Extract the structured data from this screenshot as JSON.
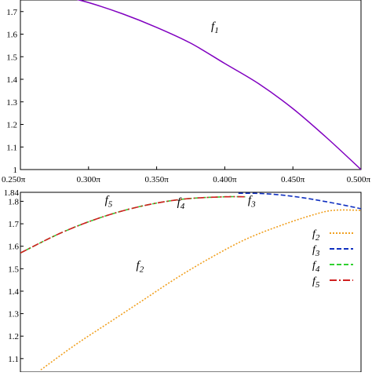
{
  "chart_data": [
    {
      "type": "line",
      "title": "",
      "xlabel": "",
      "ylabel": "",
      "xlim": [
        0.25,
        0.5
      ],
      "ylim": [
        1.0,
        1.8
      ],
      "x_ticks": [
        0.25,
        0.3,
        0.35,
        0.4,
        0.45,
        0.5
      ],
      "x_tick_labels": [
        "0.250π",
        "0.300π",
        "0.350π",
        "0.400π",
        "0.450π",
        "0.500π"
      ],
      "y_ticks": [
        1,
        1.1,
        1.2,
        1.3,
        1.4,
        1.5,
        1.6,
        1.7
      ],
      "y_tick_labels": [
        "1",
        "1.1",
        "1.2",
        "1.3",
        "1.4",
        "1.5",
        "1.6",
        "1.7"
      ],
      "grid": false,
      "series": [
        {
          "name": "f1",
          "color": "#8000c0",
          "dash": "solid",
          "x": [
            0.28,
            0.3,
            0.325,
            0.35,
            0.375,
            0.4,
            0.425,
            0.45,
            0.475,
            0.5
          ],
          "y": [
            1.77,
            1.74,
            1.69,
            1.63,
            1.56,
            1.47,
            1.38,
            1.27,
            1.14,
            1.0
          ]
        }
      ],
      "annotations": [
        {
          "base": "f",
          "sub": "1",
          "x": 0.39,
          "y": 1.62
        }
      ]
    },
    {
      "type": "line",
      "title": "",
      "xlabel": "",
      "ylabel": "",
      "xlim": [
        0.25,
        0.5
      ],
      "ylim": [
        1.04,
        1.84
      ],
      "y_ticks": [
        1.1,
        1.2,
        1.3,
        1.4,
        1.5,
        1.6,
        1.7,
        1.8,
        1.84
      ],
      "y_tick_labels": [
        "1.1",
        "1.2",
        "1.3",
        "1.4",
        "1.5",
        "1.6",
        "1.7",
        "1.8",
        "1.84"
      ],
      "grid": false,
      "legend_position": "right",
      "series": [
        {
          "name": "f2",
          "color": "#f0a020",
          "dash": "fine",
          "x": [
            0.265,
            0.29,
            0.315,
            0.34,
            0.365,
            0.39,
            0.415,
            0.44,
            0.465,
            0.48,
            0.5
          ],
          "y": [
            1.05,
            1.16,
            1.26,
            1.36,
            1.46,
            1.55,
            1.63,
            1.69,
            1.74,
            1.76,
            1.76
          ]
        },
        {
          "name": "f3",
          "color": "#1030c0",
          "dash": "dashed",
          "x": [
            0.41,
            0.425,
            0.44,
            0.455,
            0.47,
            0.485,
            0.5
          ],
          "y": [
            1.836,
            1.835,
            1.829,
            1.818,
            1.803,
            1.786,
            1.767
          ]
        },
        {
          "name": "f4",
          "color": "#30d030",
          "dash": "dashed",
          "x": [
            0.25,
            0.28,
            0.31,
            0.34,
            0.37,
            0.4,
            0.415
          ],
          "y": [
            1.57,
            1.66,
            1.73,
            1.78,
            1.81,
            1.82,
            1.82
          ]
        },
        {
          "name": "f5",
          "color": "#d02020",
          "dash": "dashdot",
          "x": [
            0.25,
            0.28,
            0.31,
            0.34,
            0.37,
            0.4,
            0.415
          ],
          "y": [
            1.57,
            1.66,
            1.73,
            1.78,
            1.81,
            1.82,
            1.82
          ]
        }
      ],
      "annotations": [
        {
          "base": "f",
          "sub": "5",
          "x": 0.312,
          "y": 1.79
        },
        {
          "base": "f",
          "sub": "4",
          "x": 0.365,
          "y": 1.78
        },
        {
          "base": "f",
          "sub": "3",
          "x": 0.417,
          "y": 1.79
        },
        {
          "base": "f",
          "sub": "2",
          "x": 0.335,
          "y": 1.5
        }
      ],
      "legend": [
        {
          "base": "f",
          "sub": "2",
          "series": "f2"
        },
        {
          "base": "f",
          "sub": "3",
          "series": "f3"
        },
        {
          "base": "f",
          "sub": "4",
          "series": "f4"
        },
        {
          "base": "f",
          "sub": "5",
          "series": "f5"
        }
      ]
    }
  ]
}
